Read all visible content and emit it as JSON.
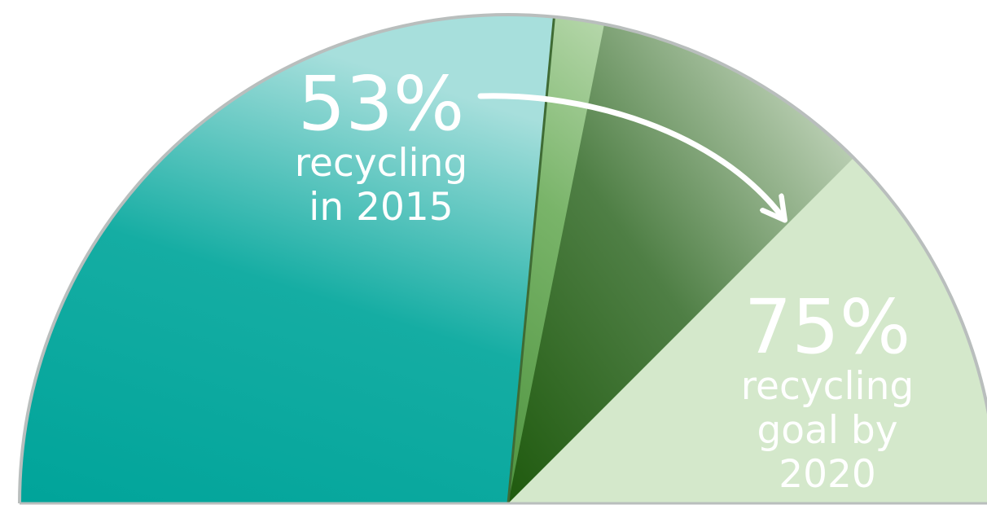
{
  "chart_data": {
    "type": "gauge",
    "range": [
      0,
      100
    ],
    "current": {
      "value": 53,
      "value_label": "53%",
      "label_lines": [
        "recycling",
        "in 2015"
      ],
      "color": "#00A79C"
    },
    "goal": {
      "value": 75,
      "value_label": "75%",
      "label_lines": [
        "recycling",
        "goal by",
        "2020"
      ],
      "colors": {
        "near": "#5FA049",
        "far": "#2A6612"
      }
    },
    "remaining_color": "#D4E8CB",
    "annotation": "arrow from current value to goal value"
  }
}
